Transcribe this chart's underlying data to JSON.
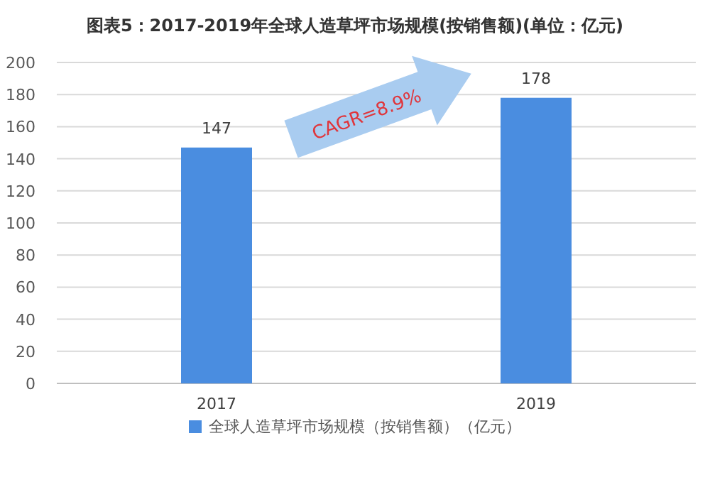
{
  "chart_data": {
    "type": "bar",
    "title": "图表5：2017-2019年全球人造草坪市场规模(按销售额)(单位：亿元)",
    "categories": [
      "2017",
      "2019"
    ],
    "series": [
      {
        "name": "全球人造草坪市场规模（按销售额）（亿元）",
        "color": "#4a8de0",
        "values": [
          147,
          178
        ]
      }
    ],
    "ylim": [
      0,
      200
    ],
    "yticks": [
      0,
      20,
      40,
      60,
      80,
      100,
      120,
      140,
      160,
      180,
      200
    ],
    "grid": "y",
    "legend": "bottom",
    "data_labels": true,
    "annotations": [
      "CAGR=8.9%"
    ]
  }
}
